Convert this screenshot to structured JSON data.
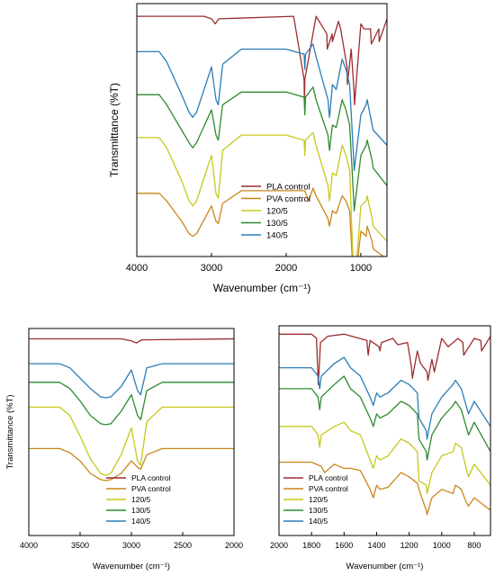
{
  "chart_data": [
    {
      "id": "full",
      "type": "line",
      "title": "",
      "xlabel": "Wavenumber (cm⁻¹)",
      "ylabel": "Transmittance (%T)",
      "xlim": [
        4000,
        650
      ],
      "xticks": [
        4000,
        3000,
        2000,
        1000
      ],
      "xtick_labels": [
        "4000",
        "3000",
        "2000",
        "1000"
      ],
      "ylim": [
        0,
        100
      ],
      "y_ticks_shown": false,
      "grid": false,
      "legend_position": "bottom-right",
      "series": [
        {
          "name": "PLA control",
          "color": "#9b2d2d",
          "baseline": 95,
          "x": [
            4000,
            3100,
            3000,
            2950,
            2900,
            1900,
            1760,
            1755,
            1750,
            1600,
            1455,
            1450,
            1385,
            1380,
            1300,
            1270,
            1185,
            1180,
            1130,
            1090,
            1085,
            1045,
            1000,
            960,
            870,
            860,
            760,
            755,
            650
          ],
          "y": [
            95,
            95,
            94,
            92,
            94,
            95,
            70,
            60,
            70,
            95,
            88,
            82,
            88,
            85,
            93,
            90,
            75,
            68,
            82,
            65,
            60,
            75,
            92,
            90,
            90,
            84,
            90,
            85,
            94
          ]
        },
        {
          "name": "PVA control",
          "color": "#c9861a",
          "baseline": 25,
          "x": [
            4000,
            3700,
            3600,
            3400,
            3300,
            3250,
            3200,
            3000,
            2940,
            2910,
            2850,
            2600,
            2000,
            1750,
            1700,
            1640,
            1600,
            1440,
            1420,
            1380,
            1330,
            1250,
            1200,
            1150,
            1095,
            1090,
            1000,
            930,
            915,
            850,
            835,
            650
          ],
          "y": [
            25,
            25,
            22,
            14,
            9,
            8,
            9,
            20,
            14,
            13,
            21,
            26,
            26,
            26,
            22,
            27,
            24,
            15,
            12,
            18,
            17,
            24,
            22,
            18,
            -12,
            -14,
            10,
            8,
            12,
            6,
            3,
            -1
          ]
        },
        {
          "name": "120/5",
          "color": "#c8c81e",
          "baseline": 47,
          "x": [
            4000,
            3700,
            3600,
            3400,
            3300,
            3250,
            3200,
            3000,
            2940,
            2910,
            2850,
            2600,
            2000,
            1760,
            1750,
            1740,
            1640,
            1600,
            1440,
            1420,
            1380,
            1330,
            1250,
            1200,
            1150,
            1095,
            1090,
            1000,
            930,
            915,
            850,
            835,
            650
          ],
          "y": [
            47,
            47,
            43,
            30,
            22,
            20,
            22,
            40,
            25,
            23,
            42,
            48,
            48,
            46,
            40,
            46,
            49,
            44,
            28,
            22,
            33,
            32,
            44,
            40,
            34,
            -10,
            -14,
            20,
            22,
            24,
            15,
            12,
            6
          ]
        },
        {
          "name": "130/5",
          "color": "#2e8b2e",
          "baseline": 64,
          "x": [
            4000,
            3700,
            3600,
            3400,
            3300,
            3250,
            3200,
            3000,
            2940,
            2910,
            2850,
            2600,
            2000,
            1760,
            1750,
            1740,
            1640,
            1600,
            1440,
            1420,
            1380,
            1330,
            1250,
            1200,
            1150,
            1095,
            1090,
            1000,
            930,
            915,
            850,
            835,
            650
          ],
          "y": [
            64,
            64,
            60,
            50,
            45,
            43,
            45,
            58,
            48,
            46,
            60,
            65,
            65,
            63,
            56,
            63,
            67,
            62,
            48,
            42,
            52,
            51,
            62,
            58,
            52,
            22,
            18,
            40,
            44,
            46,
            38,
            35,
            28
          ]
        },
        {
          "name": "140/5",
          "color": "#2a7db8",
          "baseline": 81,
          "x": [
            4000,
            3700,
            3600,
            3400,
            3300,
            3250,
            3200,
            3000,
            2940,
            2910,
            2850,
            2600,
            2000,
            1760,
            1750,
            1740,
            1640,
            1600,
            1440,
            1420,
            1380,
            1330,
            1250,
            1200,
            1150,
            1095,
            1090,
            1000,
            930,
            915,
            850,
            835,
            650
          ],
          "y": [
            81,
            81,
            77,
            64,
            57,
            55,
            57,
            75,
            62,
            60,
            76,
            82,
            82,
            80,
            74,
            80,
            84,
            79,
            62,
            55,
            68,
            66,
            78,
            74,
            68,
            38,
            34,
            56,
            60,
            62,
            52,
            50,
            44
          ]
        }
      ]
    },
    {
      "id": "high",
      "type": "line",
      "title": "",
      "xlabel": "Wavenumber (cm⁻¹)",
      "ylabel": "Transmittance (%T)",
      "xlim": [
        4000,
        2000
      ],
      "xticks": [
        4000,
        3500,
        3000,
        2500,
        2000
      ],
      "xtick_labels": [
        "4000",
        "3500",
        "3000",
        "2500",
        "2000"
      ],
      "ylim": [
        0,
        100
      ],
      "y_ticks_shown": false,
      "grid": false,
      "legend_position": "bottom-left",
      "series": [
        {
          "name": "PLA control",
          "color": "#9b2d2d",
          "x": [
            4000,
            3100,
            3000,
            2950,
            2900,
            2000
          ],
          "y": [
            95,
            95,
            94,
            93,
            94.5,
            95
          ]
        },
        {
          "name": "PVA control",
          "color": "#c9861a",
          "x": [
            4000,
            3700,
            3600,
            3500,
            3400,
            3300,
            3250,
            3200,
            3100,
            3000,
            2940,
            2910,
            2850,
            2700,
            2000
          ],
          "y": [
            42,
            42,
            40,
            36,
            30,
            27,
            26.5,
            27,
            30,
            36,
            33,
            32,
            39,
            42,
            42
          ]
        },
        {
          "name": "120/5",
          "color": "#c8c81e",
          "x": [
            4000,
            3700,
            3600,
            3500,
            3400,
            3300,
            3250,
            3200,
            3100,
            3000,
            2940,
            2910,
            2850,
            2700,
            2000
          ],
          "y": [
            62,
            62,
            58,
            48,
            37,
            30,
            29,
            30,
            39,
            52,
            36,
            34,
            55,
            62,
            62
          ]
        },
        {
          "name": "130/5",
          "color": "#2e8b2e",
          "x": [
            4000,
            3700,
            3600,
            3500,
            3400,
            3300,
            3250,
            3200,
            3100,
            3000,
            2940,
            2910,
            2850,
            2700,
            2000
          ],
          "y": [
            74,
            74,
            71,
            65,
            58,
            54,
            53.5,
            54,
            60,
            68,
            58,
            56,
            70,
            74,
            74
          ]
        },
        {
          "name": "140/5",
          "color": "#2a7db8",
          "x": [
            4000,
            3700,
            3600,
            3500,
            3400,
            3300,
            3250,
            3200,
            3100,
            3000,
            2940,
            2910,
            2850,
            2700,
            2000
          ],
          "y": [
            83,
            83,
            81,
            76,
            71,
            67,
            66.5,
            67,
            72,
            80,
            70,
            68,
            81,
            83,
            83
          ]
        }
      ]
    },
    {
      "id": "low",
      "type": "line",
      "title": "",
      "xlabel": "Wavenumber (cm⁻¹)",
      "ylabel": "",
      "xlim": [
        2000,
        700
      ],
      "xticks": [
        2000,
        1800,
        1600,
        1400,
        1200,
        1000,
        800
      ],
      "xtick_labels": [
        "2000",
        "1800",
        "1600",
        "1400",
        "1200",
        "1000",
        "800"
      ],
      "ylim": [
        0,
        100
      ],
      "y_ticks_shown": false,
      "grid": false,
      "legend_position": "bottom-left",
      "series": [
        {
          "name": "PLA control",
          "color": "#9b2d2d",
          "x": [
            2000,
            1800,
            1770,
            1758,
            1745,
            1700,
            1600,
            1460,
            1452,
            1440,
            1385,
            1380,
            1370,
            1300,
            1270,
            1210,
            1185,
            1180,
            1150,
            1130,
            1090,
            1085,
            1060,
            1045,
            1000,
            960,
            900,
            870,
            865,
            800,
            760,
            755,
            700
          ],
          "y": [
            96,
            96,
            94,
            72,
            92,
            95,
            96,
            93,
            86,
            93,
            90,
            88,
            92,
            94,
            91,
            92,
            80,
            75,
            88,
            82,
            78,
            74,
            84,
            78,
            94,
            90,
            94,
            92,
            86,
            94,
            93,
            88,
            95
          ]
        },
        {
          "name": "PVA control",
          "color": "#c9861a",
          "x": [
            2000,
            1800,
            1740,
            1720,
            1660,
            1600,
            1560,
            1500,
            1440,
            1420,
            1400,
            1380,
            1330,
            1250,
            1200,
            1150,
            1140,
            1095,
            1090,
            1060,
            1000,
            930,
            915,
            880,
            850,
            835,
            800,
            700
          ],
          "y": [
            35,
            35,
            33,
            30,
            34,
            32,
            32,
            31,
            22,
            18,
            24,
            22,
            23,
            30,
            28,
            25,
            22,
            12,
            10,
            18,
            22,
            20,
            24,
            22,
            16,
            14,
            18,
            12
          ]
        },
        {
          "name": "120/5",
          "color": "#c8c81e",
          "x": [
            2000,
            1800,
            1760,
            1750,
            1740,
            1660,
            1600,
            1560,
            1500,
            1440,
            1420,
            1400,
            1380,
            1330,
            1250,
            1200,
            1150,
            1140,
            1095,
            1090,
            1060,
            1000,
            930,
            915,
            880,
            850,
            835,
            800,
            700
          ],
          "y": [
            52,
            52,
            48,
            42,
            48,
            52,
            54,
            50,
            48,
            36,
            32,
            38,
            36,
            38,
            46,
            44,
            40,
            26,
            24,
            20,
            30,
            38,
            40,
            44,
            42,
            32,
            28,
            34,
            24
          ]
        },
        {
          "name": "130/5",
          "color": "#2e8b2e",
          "x": [
            2000,
            1800,
            1760,
            1750,
            1740,
            1660,
            1600,
            1560,
            1500,
            1440,
            1420,
            1400,
            1380,
            1330,
            1250,
            1200,
            1150,
            1140,
            1095,
            1090,
            1060,
            1000,
            930,
            915,
            880,
            850,
            835,
            800,
            700
          ],
          "y": [
            70,
            70,
            66,
            60,
            66,
            72,
            76,
            70,
            66,
            56,
            52,
            58,
            56,
            58,
            64,
            62,
            58,
            46,
            40,
            36,
            48,
            56,
            62,
            64,
            60,
            52,
            48,
            54,
            40
          ]
        },
        {
          "name": "140/5",
          "color": "#2a7db8",
          "x": [
            2000,
            1800,
            1760,
            1750,
            1740,
            1660,
            1600,
            1560,
            1500,
            1440,
            1420,
            1400,
            1380,
            1330,
            1250,
            1200,
            1150,
            1140,
            1095,
            1090,
            1060,
            1000,
            930,
            915,
            880,
            850,
            835,
            800,
            700
          ],
          "y": [
            80,
            80,
            76,
            70,
            76,
            82,
            85,
            80,
            76,
            66,
            62,
            68,
            66,
            68,
            74,
            72,
            68,
            56,
            50,
            46,
            58,
            66,
            72,
            74,
            70,
            62,
            58,
            64,
            52
          ]
        }
      ]
    }
  ]
}
